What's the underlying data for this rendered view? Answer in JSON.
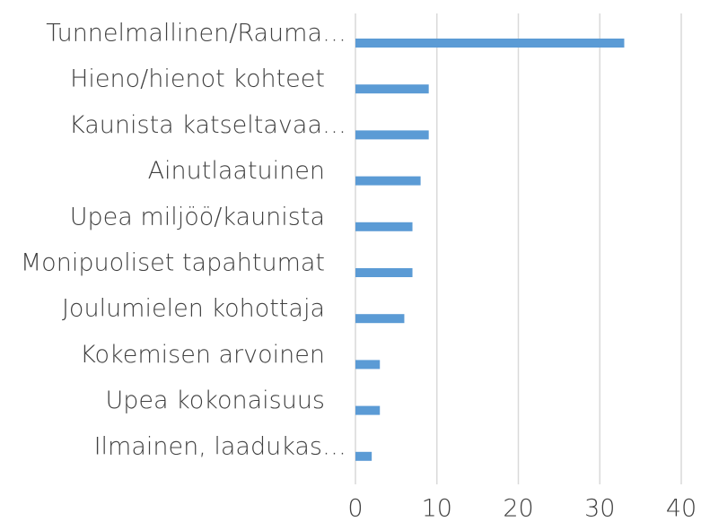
{
  "chart_data": {
    "type": "bar",
    "orientation": "horizontal",
    "categories": [
      "Tunnelmallinen/Rauma…",
      "Hieno/hienot kohteet",
      "Kaunista katseltavaa…",
      "Ainutlaatuinen",
      "Upea miljöö/kaunista",
      "Monipuoliset tapahtumat",
      "Joulumielen kohottaja",
      "Kokemisen arvoinen",
      "Upea kokonaisuus",
      "Ilmainen, laadukas…"
    ],
    "values": [
      33,
      9,
      9,
      8,
      7,
      7,
      6,
      3,
      3,
      2
    ],
    "color": "#5b9bd5",
    "xlim": [
      0,
      40
    ],
    "xticks": [
      0,
      10,
      20,
      30,
      40
    ],
    "grid": true
  }
}
